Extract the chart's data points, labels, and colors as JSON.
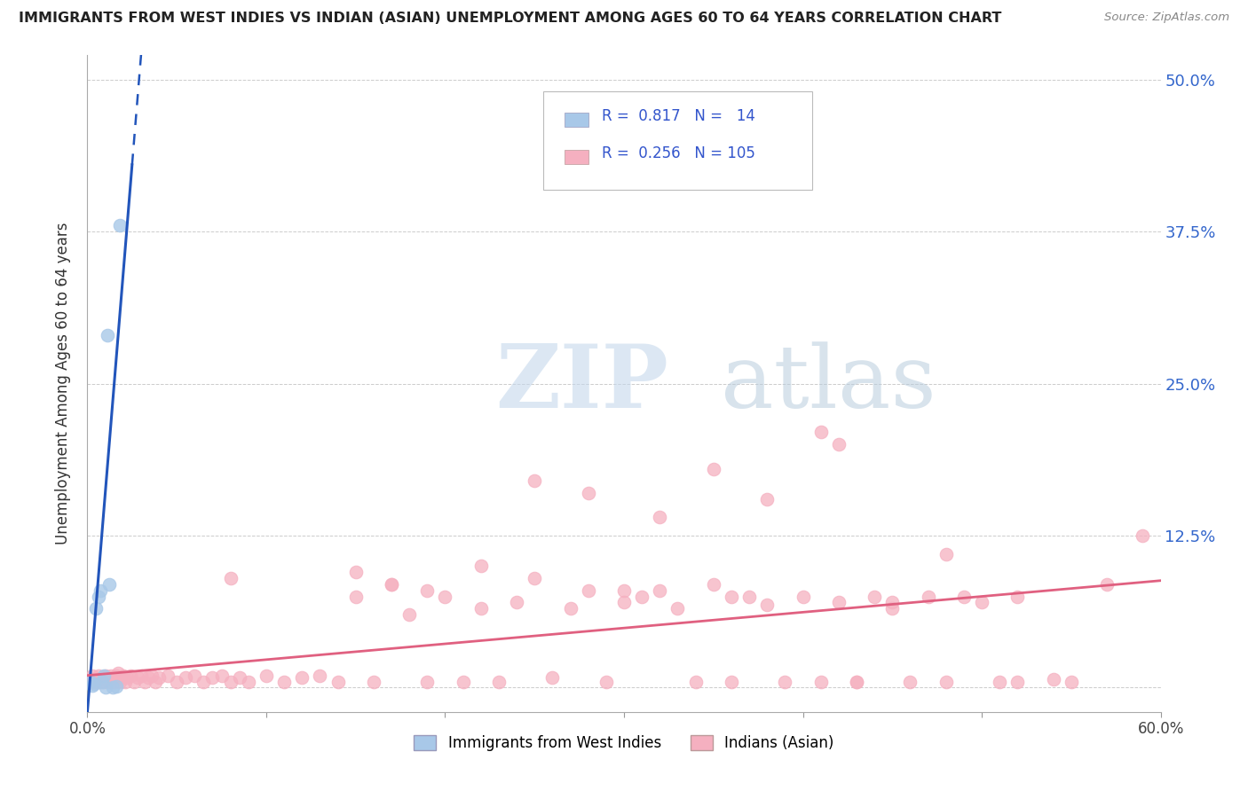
{
  "title": "IMMIGRANTS FROM WEST INDIES VS INDIAN (ASIAN) UNEMPLOYMENT AMONG AGES 60 TO 64 YEARS CORRELATION CHART",
  "source": "Source: ZipAtlas.com",
  "ylabel": "Unemployment Among Ages 60 to 64 years",
  "xlim": [
    0.0,
    0.6
  ],
  "ylim": [
    -0.02,
    0.52
  ],
  "x_ticks": [
    0.0,
    0.1,
    0.2,
    0.3,
    0.4,
    0.5,
    0.6
  ],
  "x_tick_labels": [
    "0.0%",
    "",
    "",
    "",
    "",
    "",
    "60.0%"
  ],
  "y_ticks": [
    0.0,
    0.125,
    0.25,
    0.375,
    0.5
  ],
  "y_tick_labels": [
    "",
    "12.5%",
    "25.0%",
    "37.5%",
    "50.0%"
  ],
  "blue_R": "0.817",
  "blue_N": "14",
  "pink_R": "0.256",
  "pink_N": "105",
  "blue_color": "#a8c8e8",
  "pink_color": "#f5b0c0",
  "blue_line_color": "#2255bb",
  "pink_line_color": "#e06080",
  "watermark_zip": "ZIP",
  "watermark_atlas": "atlas",
  "background_color": "#ffffff",
  "grid_color": "#cccccc",
  "blue_scatter_x": [
    0.002,
    0.003,
    0.004,
    0.005,
    0.006,
    0.007,
    0.008,
    0.009,
    0.01,
    0.011,
    0.012,
    0.014,
    0.016,
    0.018
  ],
  "blue_scatter_y": [
    0.005,
    0.002,
    0.003,
    0.065,
    0.075,
    0.08,
    0.005,
    0.01,
    0.0,
    0.29,
    0.085,
    0.0,
    0.001,
    0.38
  ],
  "pink_scatter_x": [
    0.002,
    0.003,
    0.004,
    0.005,
    0.006,
    0.007,
    0.008,
    0.009,
    0.01,
    0.011,
    0.012,
    0.013,
    0.014,
    0.015,
    0.016,
    0.017,
    0.018,
    0.019,
    0.02,
    0.021,
    0.022,
    0.024,
    0.026,
    0.028,
    0.03,
    0.032,
    0.034,
    0.036,
    0.038,
    0.04,
    0.045,
    0.05,
    0.055,
    0.06,
    0.065,
    0.07,
    0.075,
    0.08,
    0.085,
    0.09,
    0.1,
    0.11,
    0.12,
    0.13,
    0.14,
    0.15,
    0.16,
    0.17,
    0.18,
    0.19,
    0.2,
    0.21,
    0.22,
    0.23,
    0.24,
    0.25,
    0.26,
    0.27,
    0.28,
    0.29,
    0.3,
    0.31,
    0.32,
    0.33,
    0.34,
    0.35,
    0.36,
    0.37,
    0.38,
    0.39,
    0.4,
    0.41,
    0.42,
    0.43,
    0.44,
    0.45,
    0.46,
    0.47,
    0.48,
    0.49,
    0.5,
    0.51,
    0.52,
    0.54,
    0.55,
    0.57,
    0.59,
    0.35,
    0.42,
    0.28,
    0.32,
    0.25,
    0.41,
    0.19,
    0.48,
    0.38,
    0.22,
    0.17,
    0.08,
    0.15,
    0.3,
    0.45,
    0.36,
    0.52,
    0.43
  ],
  "pink_scatter_y": [
    0.005,
    0.01,
    0.005,
    0.005,
    0.01,
    0.005,
    0.008,
    0.005,
    0.01,
    0.008,
    0.005,
    0.01,
    0.008,
    0.005,
    0.01,
    0.012,
    0.005,
    0.008,
    0.01,
    0.005,
    0.008,
    0.01,
    0.005,
    0.008,
    0.01,
    0.005,
    0.008,
    0.01,
    0.005,
    0.008,
    0.01,
    0.005,
    0.008,
    0.01,
    0.005,
    0.008,
    0.01,
    0.005,
    0.008,
    0.005,
    0.01,
    0.005,
    0.008,
    0.01,
    0.005,
    0.095,
    0.005,
    0.085,
    0.06,
    0.005,
    0.075,
    0.005,
    0.065,
    0.005,
    0.07,
    0.09,
    0.008,
    0.065,
    0.08,
    0.005,
    0.07,
    0.075,
    0.08,
    0.065,
    0.005,
    0.085,
    0.005,
    0.075,
    0.068,
    0.005,
    0.075,
    0.005,
    0.07,
    0.005,
    0.075,
    0.07,
    0.005,
    0.075,
    0.005,
    0.075,
    0.07,
    0.005,
    0.075,
    0.007,
    0.005,
    0.085,
    0.125,
    0.18,
    0.2,
    0.16,
    0.14,
    0.17,
    0.21,
    0.08,
    0.11,
    0.155,
    0.1,
    0.085,
    0.09,
    0.075,
    0.08,
    0.065,
    0.075,
    0.005,
    0.005
  ],
  "blue_line_x_start": 0.0,
  "blue_line_x_solid_end": 0.025,
  "blue_line_x_dashed_end": 0.055,
  "blue_line_slope": 18.0,
  "blue_line_intercept": -0.02,
  "pink_line_x_start": 0.0,
  "pink_line_x_end": 0.6,
  "pink_line_slope": 0.13,
  "pink_line_intercept": 0.01
}
